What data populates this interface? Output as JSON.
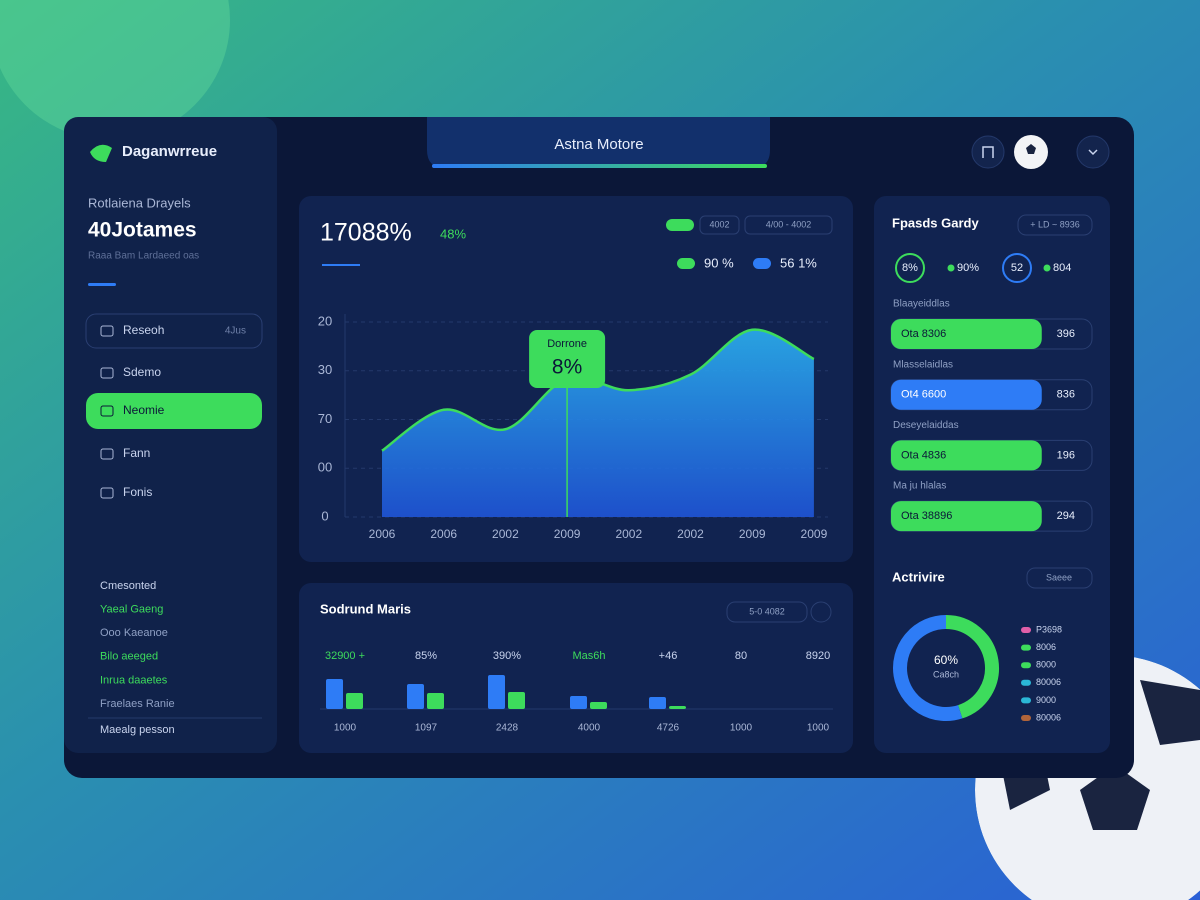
{
  "header": {
    "brand": "Daganwrreue",
    "tab": "Astna Motore"
  },
  "sidebar": {
    "subtitle": "Rotlaiena Drayels",
    "headline": "40Jotames",
    "caption": "Raaa Bam Lardaeed oas",
    "nav": [
      {
        "label": "Reseoh",
        "badge": "4Jus"
      },
      {
        "label": "Sdemo"
      },
      {
        "label": "Neomie",
        "active": true
      },
      {
        "label": "Fann"
      },
      {
        "label": "Fonis"
      }
    ],
    "links": [
      {
        "label": "Cmesonted",
        "color": "#c9d4ee"
      },
      {
        "label": "Yaeal Gaeng",
        "color": "#3ddc5c"
      },
      {
        "label": "Ooo Kaeanoe",
        "color": "#8fa0c4"
      },
      {
        "label": "Bilo aeeged",
        "color": "#3ddc5c"
      },
      {
        "label": "Inrua daaetes",
        "color": "#3ddc5c"
      },
      {
        "label": "Fraelaes Ranie",
        "color": "#8fa0c4"
      }
    ],
    "footer": "Maealg pesson"
  },
  "chart_data": [
    {
      "type": "area",
      "title": "17088%",
      "change": "48%",
      "filters": [
        "4002",
        "4/00 - 4002"
      ],
      "stats": [
        {
          "label": "90 %",
          "color": "#3ddc5c"
        },
        {
          "label": "56 1%",
          "color": "#2e7cf6"
        }
      ],
      "categories": [
        "2006",
        "2006",
        "2002",
        "2009",
        "2002",
        "2002",
        "2009",
        "2009"
      ],
      "values": [
        34,
        55,
        45,
        71,
        65,
        73,
        96,
        81
      ],
      "color": "#2e7cf6",
      "line_color": "#3ddc5c",
      "ylim": [
        0,
        100
      ],
      "yticks": [
        0,
        {
          "value": 25,
          "label": "00"
        },
        {
          "value": 50,
          "label": "70"
        },
        {
          "value": 75,
          "label": "30"
        },
        {
          "value": 100,
          "label": "20"
        }
      ],
      "grid": true,
      "annotation": {
        "title": "Dorrone",
        "label": "8%"
      }
    },
    {
      "type": "bar",
      "title": "Sodrund Maris",
      "filter": "5-0 4082",
      "column_labels": [
        "32900 +",
        "85%",
        "390%",
        "Mas6h",
        "+46",
        "80",
        "8920"
      ],
      "categories": [
        "1000",
        "1097",
        "2428",
        "4000",
        "4726",
        "1000",
        "1000"
      ],
      "series": [
        {
          "color": "#2e7cf6",
          "values": [
            30,
            25,
            34,
            13,
            12,
            null,
            null
          ]
        },
        {
          "color": "#3ddc5c",
          "values": [
            16,
            16,
            17,
            7,
            3,
            null,
            null
          ]
        }
      ],
      "ylim": [
        0,
        40
      ]
    },
    {
      "type": "progress",
      "title": "Fpasds Gardy",
      "filter": "+ LD ~ 8936",
      "rings": [
        {
          "label": "8%",
          "color": "#3ddc5c",
          "ring": true
        },
        {
          "label": "90%",
          "color": "#3ddc5c"
        },
        {
          "label": "52",
          "color": "#2e7cf6",
          "ring": true
        },
        {
          "label": "804",
          "color": "#3ddc5c"
        }
      ],
      "categories": [
        "Blaayeiddlas",
        "Mlasselaidlas",
        "Deseyelaiddas",
        "Ma ju hlalas"
      ],
      "bar_texts": [
        "Ota 8306",
        "Ot4 6600",
        "Ota 4836",
        "Ota 38896"
      ],
      "end_labels": [
        "396",
        "836",
        "196",
        "294"
      ],
      "values": [
        75,
        75,
        75,
        75
      ],
      "colors": [
        "#3ddc5c",
        "#2e7cf6",
        "#3ddc5c",
        "#3ddc5c"
      ],
      "xlim": [
        0,
        100
      ]
    },
    {
      "type": "donut",
      "title": "Actrivire",
      "filter": "Saeee",
      "center": "60%",
      "center_sub": "Ca8ch",
      "values": [
        45,
        55
      ],
      "colors": [
        "#3ddc5c",
        "#2e7cf6"
      ],
      "legend": [
        {
          "label": "P3698",
          "color": "#e05fa8"
        },
        {
          "label": "8006",
          "color": "#3ddc5c"
        },
        {
          "label": "8000",
          "color": "#3ddc5c"
        },
        {
          "label": "80006",
          "color": "#2bb7d6"
        },
        {
          "label": "9000",
          "color": "#2bb7d6"
        },
        {
          "label": "80006",
          "color": "#b0643a"
        }
      ]
    }
  ]
}
